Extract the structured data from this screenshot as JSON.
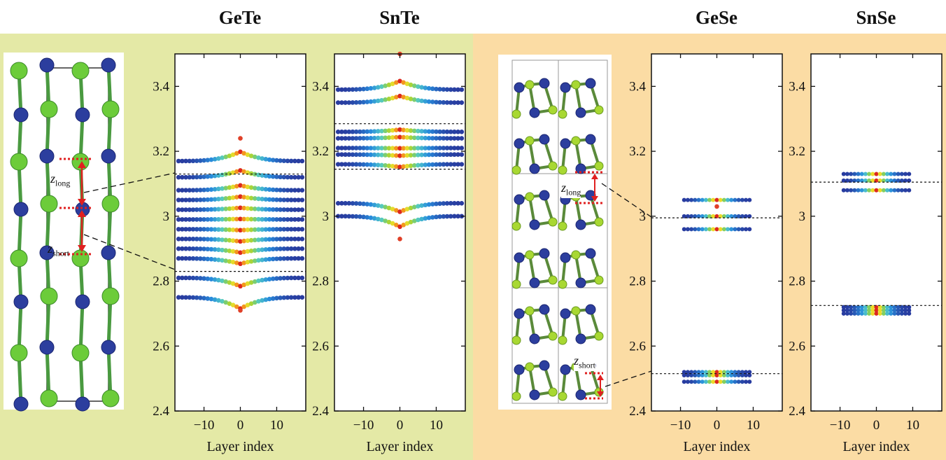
{
  "panels": [
    {
      "title": "GeTe",
      "chart_data": {
        "type": "scatter",
        "xlabel": "Layer index",
        "xlim": [
          -18,
          18
        ],
        "ylim": [
          2.4,
          3.5
        ],
        "xticks": [
          -10,
          0,
          10
        ],
        "yticks": [
          2.4,
          2.6,
          2.8,
          3.0,
          3.2,
          3.4
        ],
        "reference_lines": [
          3.13,
          2.83
        ],
        "rows": [
          3.17,
          3.12,
          3.08,
          3.05,
          3.02,
          2.99,
          2.96,
          2.93,
          2.9,
          2.87,
          2.81,
          2.75
        ],
        "apex": [
          3.24,
          2.71
        ]
      }
    },
    {
      "title": "SnTe",
      "chart_data": {
        "type": "scatter",
        "xlabel": "Layer index",
        "xlim": [
          -18,
          18
        ],
        "ylim": [
          2.4,
          3.5
        ],
        "xticks": [
          -10,
          0,
          10
        ],
        "yticks": [
          2.4,
          2.6,
          2.8,
          3.0,
          3.2,
          3.4
        ],
        "reference_lines": [
          3.285,
          3.145
        ],
        "rows": [
          3.39,
          3.35,
          3.26,
          3.24,
          3.21,
          3.19,
          3.16,
          3.04,
          3.0
        ],
        "apex": [
          3.5,
          2.93
        ]
      }
    },
    {
      "title": "GeSe",
      "chart_data": {
        "type": "scatter",
        "xlabel": "Layer index",
        "xlim": [
          -18,
          18
        ],
        "ylim": [
          2.4,
          3.5
        ],
        "xticks": [
          -10,
          0,
          10
        ],
        "yticks": [
          2.4,
          2.6,
          2.8,
          3.0,
          3.2,
          3.4
        ],
        "reference_lines": [
          2.995,
          2.515
        ],
        "rows": [
          3.05,
          3.0,
          2.96,
          2.52,
          2.51,
          2.49
        ],
        "apex": [
          3.03
        ]
      }
    },
    {
      "title": "SnSe",
      "chart_data": {
        "type": "scatter",
        "xlabel": "Layer index",
        "xlim": [
          -18,
          18
        ],
        "ylim": [
          2.4,
          3.5
        ],
        "xticks": [
          -10,
          0,
          10
        ],
        "yticks": [
          2.4,
          2.6,
          2.8,
          3.0,
          3.2,
          3.4
        ],
        "reference_lines": [
          3.105,
          2.725
        ],
        "rows": [
          3.13,
          3.11,
          3.08,
          2.72,
          2.71,
          2.7
        ],
        "apex": []
      }
    }
  ],
  "annotations": {
    "z_long_main": "z",
    "z_long_sub": "long",
    "z_short_main": "z",
    "z_short_sub": "short"
  },
  "colors": {
    "ge_atom": "#6ccc3a",
    "te_atom": "#2c3e9e",
    "se_atom": "#a8d832",
    "arrow": "#e02020",
    "background_left": "#e4e9a6",
    "background_right": "#fbdca4"
  }
}
